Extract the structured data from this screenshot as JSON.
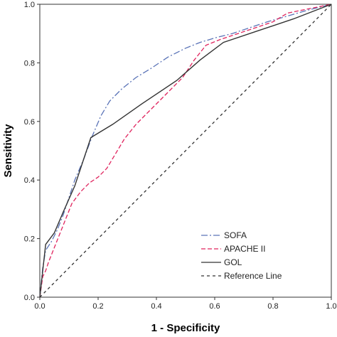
{
  "chart_data": {
    "type": "line",
    "title": "",
    "xlabel": "1 - Specificity",
    "ylabel": "Sensitivity",
    "xlim": [
      0,
      1
    ],
    "ylim": [
      0,
      1
    ],
    "xticks": [
      "0.0",
      "0.2",
      "0.4",
      "0.6",
      "0.8",
      "1.0"
    ],
    "yticks": [
      "0.0",
      "0.2",
      "0.4",
      "0.6",
      "0.8",
      "1.0"
    ],
    "grid": false,
    "legend_position": "bottom-right",
    "series": [
      {
        "name": "SOFA",
        "color": "#5a73b7",
        "dash": "dash-dot",
        "x": [
          0,
          0.01,
          0.02,
          0.04,
          0.06,
          0.08,
          0.1,
          0.12,
          0.15,
          0.18,
          0.21,
          0.24,
          0.28,
          0.33,
          0.38,
          0.44,
          0.5,
          0.55,
          0.6,
          0.66,
          0.72,
          0.78,
          0.85,
          0.92,
          1.0
        ],
        "y": [
          0,
          0.1,
          0.16,
          0.19,
          0.23,
          0.28,
          0.34,
          0.4,
          0.47,
          0.55,
          0.62,
          0.67,
          0.71,
          0.75,
          0.78,
          0.82,
          0.85,
          0.87,
          0.885,
          0.9,
          0.92,
          0.94,
          0.96,
          0.98,
          1.0
        ]
      },
      {
        "name": "APACHE II",
        "color": "#e0245e",
        "dash": "dashed",
        "x": [
          0,
          0.01,
          0.02,
          0.03,
          0.05,
          0.07,
          0.09,
          0.11,
          0.14,
          0.17,
          0.2,
          0.23,
          0.26,
          0.29,
          0.33,
          0.37,
          0.41,
          0.45,
          0.49,
          0.53,
          0.57,
          0.62,
          0.68,
          0.74,
          0.8,
          0.85,
          0.9,
          0.95,
          1.0
        ],
        "y": [
          0,
          0.07,
          0.09,
          0.12,
          0.17,
          0.22,
          0.27,
          0.32,
          0.36,
          0.39,
          0.41,
          0.44,
          0.49,
          0.54,
          0.59,
          0.63,
          0.67,
          0.71,
          0.75,
          0.81,
          0.86,
          0.88,
          0.9,
          0.92,
          0.94,
          0.97,
          0.98,
          0.99,
          1.0
        ]
      },
      {
        "name": "GOL",
        "color": "#333333",
        "dash": "solid",
        "x": [
          0,
          0.02,
          0.05,
          0.08,
          0.12,
          0.175,
          0.25,
          0.35,
          0.47,
          0.55,
          0.63,
          0.75,
          0.87,
          1.0
        ],
        "y": [
          0,
          0.18,
          0.22,
          0.29,
          0.38,
          0.545,
          0.59,
          0.66,
          0.74,
          0.81,
          0.87,
          0.91,
          0.95,
          1.0
        ]
      },
      {
        "name": "Reference Line",
        "color": "#333333",
        "dash": "short-dash",
        "x": [
          0,
          1
        ],
        "y": [
          0,
          1
        ]
      }
    ]
  }
}
